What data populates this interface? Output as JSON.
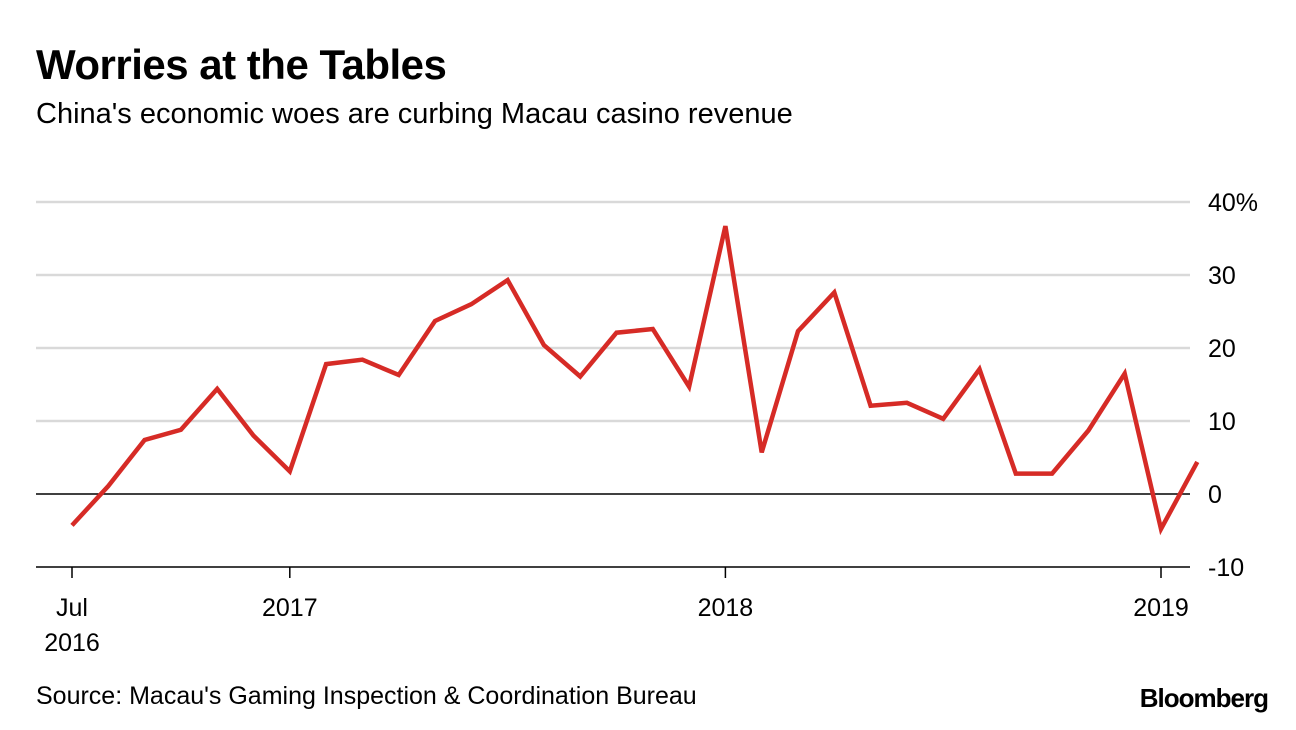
{
  "title": "Worries at the Tables",
  "subtitle": "China's economic woes are curbing Macau casino revenue",
  "source": "Source: Macau's Gaming Inspection & Coordination Bureau",
  "brand": "Bloomberg",
  "colors": {
    "line": "#d62b26",
    "grid": "#d9d9d9",
    "zero_line": "#000000",
    "axis": "#000000",
    "text": "#000000"
  },
  "chart_data": {
    "type": "line",
    "title": "Worries at the Tables",
    "subtitle": "China's economic woes are curbing Macau casino revenue",
    "xlabel": "",
    "ylabel": "",
    "y_axis_side": "right",
    "ylim": [
      -10,
      40
    ],
    "y_ticks": [
      {
        "value": 40,
        "label": "40%"
      },
      {
        "value": 30,
        "label": "30"
      },
      {
        "value": 20,
        "label": "20"
      },
      {
        "value": 10,
        "label": "10"
      },
      {
        "value": 0,
        "label": "0"
      },
      {
        "value": -10,
        "label": "-10"
      }
    ],
    "x_ticks": [
      {
        "x": "2016-07",
        "label": [
          "Jul",
          "2016"
        ]
      },
      {
        "x": "2017-01",
        "label": [
          "2017"
        ]
      },
      {
        "x": "2018-01",
        "label": [
          "2018"
        ]
      },
      {
        "x": "2019-01",
        "label": [
          "2019"
        ]
      }
    ],
    "grid": true,
    "legend": "none",
    "series": [
      {
        "color": "#d62b26",
        "points": [
          {
            "x": "2016-07",
            "y": -4.3
          },
          {
            "x": "2016-08",
            "y": 1.1
          },
          {
            "x": "2016-09",
            "y": 7.4
          },
          {
            "x": "2016-10",
            "y": 8.8
          },
          {
            "x": "2016-11",
            "y": 14.4
          },
          {
            "x": "2016-12",
            "y": 8.0
          },
          {
            "x": "2017-01",
            "y": 3.1
          },
          {
            "x": "2017-02",
            "y": 17.8
          },
          {
            "x": "2017-03",
            "y": 18.4
          },
          {
            "x": "2017-04",
            "y": 16.3
          },
          {
            "x": "2017-05",
            "y": 23.7
          },
          {
            "x": "2017-06",
            "y": 26.0
          },
          {
            "x": "2017-07",
            "y": 29.3
          },
          {
            "x": "2017-08",
            "y": 20.4
          },
          {
            "x": "2017-09",
            "y": 16.1
          },
          {
            "x": "2017-10",
            "y": 22.1
          },
          {
            "x": "2017-11",
            "y": 22.6
          },
          {
            "x": "2017-12",
            "y": 14.7
          },
          {
            "x": "2018-01",
            "y": 36.7
          },
          {
            "x": "2018-02",
            "y": 5.7
          },
          {
            "x": "2018-03",
            "y": 22.3
          },
          {
            "x": "2018-04",
            "y": 27.6
          },
          {
            "x": "2018-05",
            "y": 12.1
          },
          {
            "x": "2018-06",
            "y": 12.5
          },
          {
            "x": "2018-07",
            "y": 10.3
          },
          {
            "x": "2018-08",
            "y": 17.1
          },
          {
            "x": "2018-09",
            "y": 2.8
          },
          {
            "x": "2018-10",
            "y": 2.8
          },
          {
            "x": "2018-11",
            "y": 8.7
          },
          {
            "x": "2018-12",
            "y": 16.5
          },
          {
            "x": "2019-01",
            "y": -4.8
          },
          {
            "x": "2019-02",
            "y": 4.4
          }
        ]
      }
    ]
  }
}
